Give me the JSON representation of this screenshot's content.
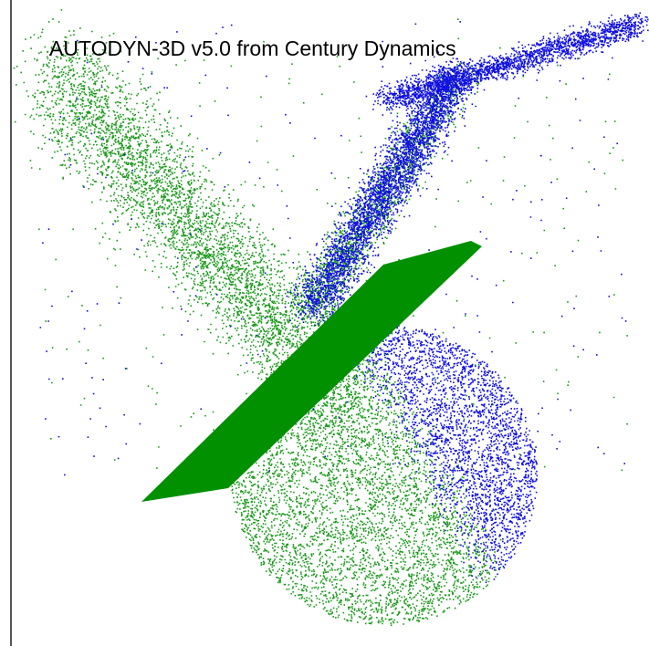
{
  "title": "AUTODYN-3D v5.0 from Century Dynamics"
}
